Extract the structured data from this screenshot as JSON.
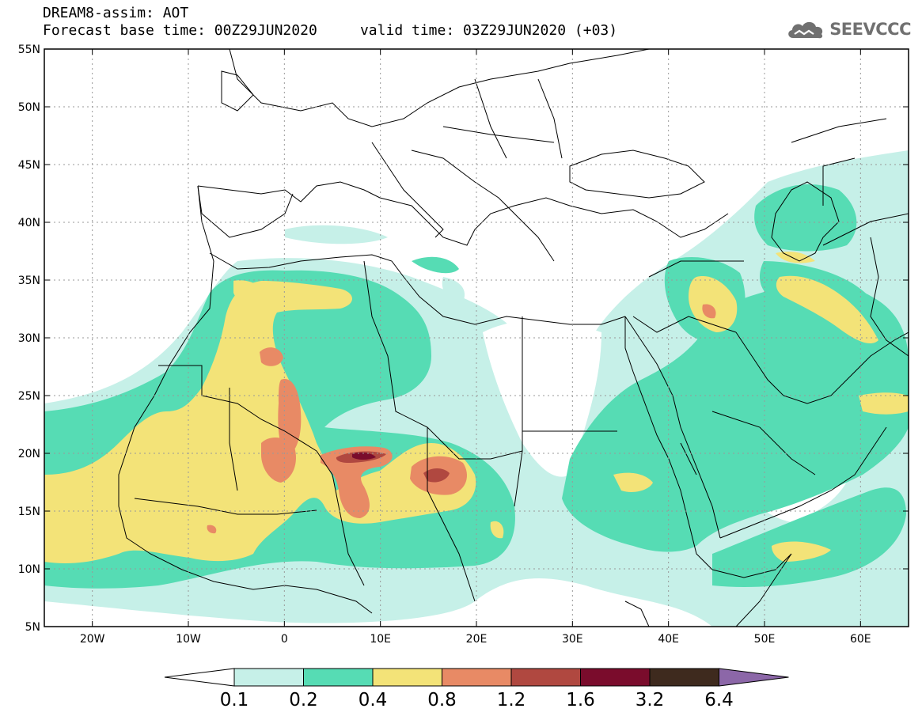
{
  "header": {
    "title_line1": "DREAM8-assim: AOT",
    "title_line2": "Forecast base time: 00Z29JUN2020     valid time: 03Z29JUN2020 (+03)"
  },
  "logo": {
    "text": "SEEVCCC",
    "icon": "cloud-icon",
    "color": "#707070"
  },
  "map": {
    "lon_range": [
      -25,
      65
    ],
    "lat_range": [
      5,
      55
    ],
    "lat_ticks": [
      {
        "lat": 55,
        "label": "55N"
      },
      {
        "lat": 50,
        "label": "50N"
      },
      {
        "lat": 45,
        "label": "45N"
      },
      {
        "lat": 40,
        "label": "40N"
      },
      {
        "lat": 35,
        "label": "35N"
      },
      {
        "lat": 30,
        "label": "30N"
      },
      {
        "lat": 25,
        "label": "25N"
      },
      {
        "lat": 20,
        "label": "20N"
      },
      {
        "lat": 15,
        "label": "15N"
      },
      {
        "lat": 10,
        "label": "10N"
      },
      {
        "lat": 5,
        "label": "5N"
      }
    ],
    "lon_ticks": [
      {
        "lon": -20,
        "label": "20W"
      },
      {
        "lon": -10,
        "label": "10W"
      },
      {
        "lon": 0,
        "label": "0"
      },
      {
        "lon": 10,
        "label": "10E"
      },
      {
        "lon": 20,
        "label": "20E"
      },
      {
        "lon": 30,
        "label": "30E"
      },
      {
        "lon": 40,
        "label": "40E"
      },
      {
        "lon": 50,
        "label": "50E"
      },
      {
        "lon": 60,
        "label": "60E"
      }
    ]
  },
  "colorbar": {
    "labels": [
      "0.1",
      "0.2",
      "0.4",
      "0.8",
      "1.2",
      "1.6",
      "3.2",
      "6.4"
    ],
    "colors": [
      "#c6f0e8",
      "#56dcb4",
      "#f3e378",
      "#e88a65",
      "#b04840",
      "#7a0c2c",
      "#3e2a1e"
    ],
    "over_color": "#8c67a8",
    "under_color": "#ffffff"
  }
}
